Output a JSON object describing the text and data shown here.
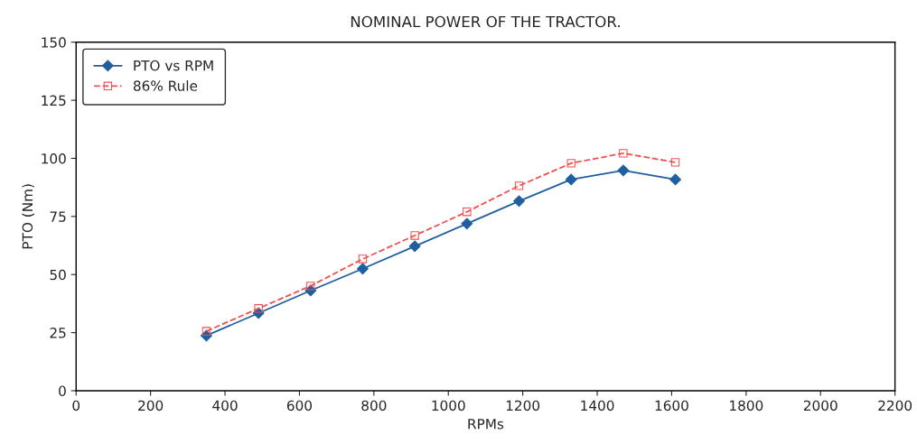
{
  "chart_data": {
    "type": "line",
    "title": "NOMINAL POWER OF THE TRACTOR.",
    "xlabel": "RPMs",
    "ylabel": "PTO (Nm)",
    "x": [
      350,
      490,
      630,
      770,
      910,
      1050,
      1190,
      1330,
      1470,
      1610
    ],
    "series": [
      {
        "name": "PTO vs RPM",
        "color": "#1f5fa0",
        "marker": "diamond",
        "line_style": "solid",
        "values": [
          23.7,
          33.4,
          43.1,
          52.5,
          62.2,
          71.9,
          81.6,
          90.9,
          94.8,
          90.9
        ]
      },
      {
        "name": "86% Rule",
        "color": "#f05050",
        "marker": "square",
        "line_style": "dashed",
        "values": [
          25.6,
          35.4,
          45.1,
          56.7,
          66.8,
          77.0,
          88.2,
          97.9,
          102.2,
          98.3
        ]
      }
    ],
    "xlim": [
      0,
      2200
    ],
    "xticks": [
      0,
      200,
      400,
      600,
      800,
      1000,
      1200,
      1400,
      1600,
      1800,
      2000,
      2200
    ],
    "ylim": [
      0,
      150
    ],
    "yticks": [
      0,
      25,
      50,
      75,
      100,
      125,
      150
    ],
    "grid": false,
    "legend": "top left"
  }
}
